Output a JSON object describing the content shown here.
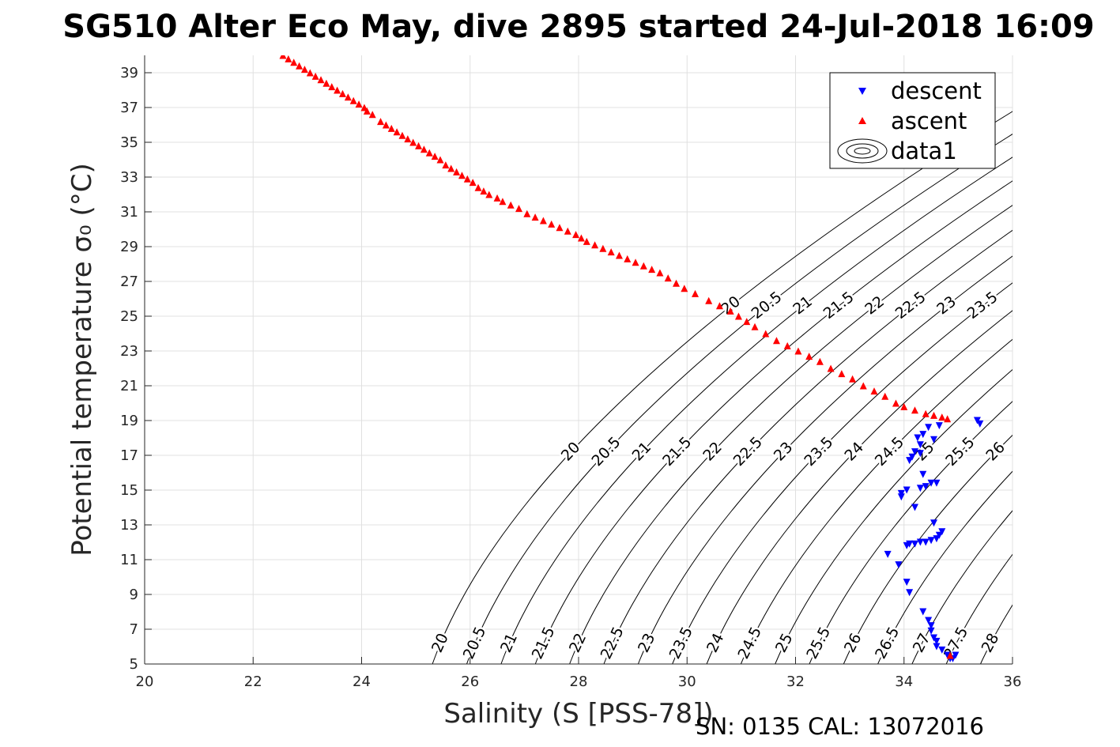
{
  "chart_data": {
    "type": "scatter",
    "title": "SG510 Alter Eco May, dive 2895 started 24-Jul-2018 16:09",
    "xlabel": "Salinity (S [PSS-78])",
    "ylabel": "Potential temperature σ₀ (°C)",
    "footer": "SN: 0135  CAL: 13072016",
    "xlim": [
      20,
      36
    ],
    "ylim": [
      5,
      40
    ],
    "x_ticks": [
      20,
      22,
      24,
      26,
      28,
      30,
      32,
      34,
      36
    ],
    "y_ticks": [
      5,
      7,
      9,
      11,
      13,
      15,
      17,
      19,
      21,
      23,
      25,
      27,
      29,
      31,
      33,
      35,
      37,
      39
    ],
    "grid": true,
    "legend_position": "top-right",
    "contour_levels": [
      20,
      20.5,
      21,
      21.5,
      22,
      22.5,
      23,
      23.5,
      24,
      24.5,
      25,
      25.5,
      26,
      26.5,
      27,
      27.5,
      28
    ],
    "series": [
      {
        "name": "descent",
        "marker": "triangle-down",
        "color": "#0000ff",
        "points": [
          [
            35.35,
            19.0
          ],
          [
            35.4,
            18.8
          ],
          [
            34.65,
            18.7
          ],
          [
            34.45,
            18.6
          ],
          [
            34.35,
            18.2
          ],
          [
            34.25,
            18.0
          ],
          [
            34.55,
            17.9
          ],
          [
            34.3,
            17.6
          ],
          [
            34.2,
            17.2
          ],
          [
            34.3,
            17.1
          ],
          [
            34.15,
            16.9
          ],
          [
            34.1,
            16.7
          ],
          [
            34.35,
            15.9
          ],
          [
            34.5,
            15.4
          ],
          [
            34.6,
            15.4
          ],
          [
            34.4,
            15.2
          ],
          [
            34.3,
            15.1
          ],
          [
            34.05,
            15.0
          ],
          [
            33.95,
            14.8
          ],
          [
            33.95,
            14.6
          ],
          [
            34.2,
            14.0
          ],
          [
            34.55,
            13.1
          ],
          [
            34.7,
            12.6
          ],
          [
            34.65,
            12.4
          ],
          [
            34.6,
            12.2
          ],
          [
            34.5,
            12.1
          ],
          [
            34.4,
            12.0
          ],
          [
            34.3,
            12.0
          ],
          [
            34.2,
            11.9
          ],
          [
            34.1,
            11.9
          ],
          [
            34.05,
            11.8
          ],
          [
            33.7,
            11.3
          ],
          [
            33.9,
            10.7
          ],
          [
            34.05,
            9.7
          ],
          [
            34.1,
            9.1
          ],
          [
            34.35,
            8.0
          ],
          [
            34.45,
            7.5
          ],
          [
            34.5,
            7.2
          ],
          [
            34.5,
            6.9
          ],
          [
            34.55,
            6.5
          ],
          [
            34.6,
            6.3
          ],
          [
            34.6,
            6.0
          ],
          [
            34.7,
            5.8
          ],
          [
            34.8,
            5.5
          ],
          [
            34.85,
            5.3
          ],
          [
            34.9,
            5.3
          ],
          [
            34.95,
            5.5
          ]
        ]
      },
      {
        "name": "ascent",
        "marker": "triangle-up",
        "color": "#ff0000",
        "points": [
          [
            22.55,
            40.0
          ],
          [
            22.65,
            39.8
          ],
          [
            22.75,
            39.6
          ],
          [
            22.85,
            39.4
          ],
          [
            22.95,
            39.2
          ],
          [
            23.05,
            39.0
          ],
          [
            23.15,
            38.8
          ],
          [
            23.25,
            38.6
          ],
          [
            23.35,
            38.4
          ],
          [
            23.45,
            38.2
          ],
          [
            23.55,
            38.0
          ],
          [
            23.65,
            37.8
          ],
          [
            23.75,
            37.6
          ],
          [
            23.85,
            37.4
          ],
          [
            23.95,
            37.2
          ],
          [
            24.05,
            37.0
          ],
          [
            24.1,
            36.8
          ],
          [
            24.2,
            36.6
          ],
          [
            24.35,
            36.2
          ],
          [
            24.45,
            36.0
          ],
          [
            24.55,
            35.8
          ],
          [
            24.65,
            35.6
          ],
          [
            24.75,
            35.4
          ],
          [
            24.85,
            35.2
          ],
          [
            24.95,
            35.0
          ],
          [
            25.05,
            34.8
          ],
          [
            25.15,
            34.6
          ],
          [
            25.25,
            34.4
          ],
          [
            25.35,
            34.2
          ],
          [
            25.45,
            34.0
          ],
          [
            25.55,
            33.7
          ],
          [
            25.65,
            33.5
          ],
          [
            25.75,
            33.3
          ],
          [
            25.85,
            33.1
          ],
          [
            25.95,
            32.9
          ],
          [
            26.05,
            32.7
          ],
          [
            26.15,
            32.4
          ],
          [
            26.25,
            32.2
          ],
          [
            26.35,
            32.0
          ],
          [
            26.5,
            31.8
          ],
          [
            26.6,
            31.6
          ],
          [
            26.75,
            31.4
          ],
          [
            26.9,
            31.2
          ],
          [
            27.05,
            30.9
          ],
          [
            27.2,
            30.7
          ],
          [
            27.35,
            30.5
          ],
          [
            27.5,
            30.3
          ],
          [
            27.65,
            30.1
          ],
          [
            27.8,
            29.9
          ],
          [
            27.95,
            29.7
          ],
          [
            28.05,
            29.5
          ],
          [
            28.15,
            29.3
          ],
          [
            28.3,
            29.1
          ],
          [
            28.45,
            28.9
          ],
          [
            28.6,
            28.7
          ],
          [
            28.75,
            28.5
          ],
          [
            28.9,
            28.3
          ],
          [
            29.05,
            28.1
          ],
          [
            29.2,
            27.9
          ],
          [
            29.35,
            27.7
          ],
          [
            29.5,
            27.5
          ],
          [
            29.65,
            27.2
          ],
          [
            29.8,
            26.9
          ],
          [
            29.95,
            26.6
          ],
          [
            30.15,
            26.3
          ],
          [
            30.4,
            25.9
          ],
          [
            30.6,
            25.6
          ],
          [
            30.8,
            25.3
          ],
          [
            30.95,
            25.0
          ],
          [
            31.1,
            24.7
          ],
          [
            31.25,
            24.4
          ],
          [
            31.45,
            24.0
          ],
          [
            31.65,
            23.6
          ],
          [
            31.85,
            23.3
          ],
          [
            32.05,
            23.0
          ],
          [
            32.25,
            22.7
          ],
          [
            32.45,
            22.4
          ],
          [
            32.65,
            22.0
          ],
          [
            32.85,
            21.7
          ],
          [
            33.05,
            21.4
          ],
          [
            33.25,
            21.0
          ],
          [
            33.45,
            20.7
          ],
          [
            33.65,
            20.4
          ],
          [
            33.85,
            20.0
          ],
          [
            34.0,
            19.8
          ],
          [
            34.2,
            19.6
          ],
          [
            34.4,
            19.4
          ],
          [
            34.55,
            19.3
          ],
          [
            34.7,
            19.2
          ],
          [
            34.8,
            19.1
          ],
          [
            34.85,
            5.5
          ]
        ]
      },
      {
        "name": "data1",
        "marker": "contour",
        "color": "#000000"
      }
    ]
  }
}
